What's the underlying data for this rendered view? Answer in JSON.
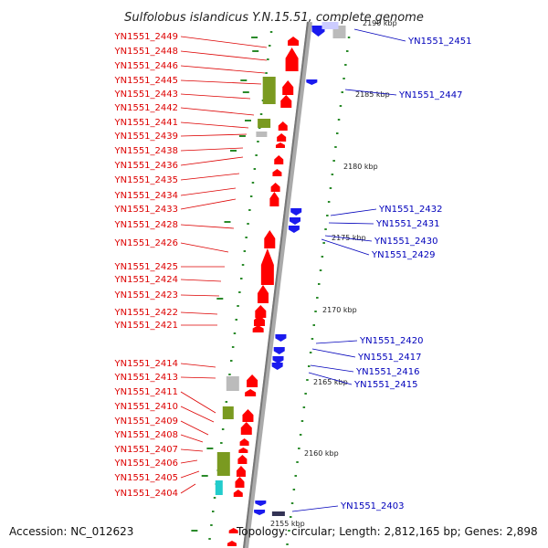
{
  "title": "Sulfolobus islandicus Y.N.15.51, complete genome",
  "accession_text": "Accession: NC_012623",
  "topology_text": "Topology: circular; Length: 2,812,165 bp; Genes: 2,898",
  "colors": {
    "forward_gene": "#ff0000",
    "reverse_gene": "#1a1aee",
    "left_label": "#dd0000",
    "right_label": "#0000bb",
    "backbone": "#999999",
    "gc_tick": "#2a8a2a",
    "cds_cog": "#7a9a20",
    "other_feature": "#bbbbbb",
    "cyan_feature": "#22cccc"
  },
  "scale_labels": [
    "2190 kbp",
    "2185 kbp",
    "2180 kbp",
    "2175 kbp",
    "2170 kbp",
    "2165 kbp",
    "2160 kbp",
    "2155 kbp"
  ],
  "left_genes": [
    "YN1551_2449",
    "YN1551_2448",
    "YN1551_2446",
    "YN1551_2445",
    "YN1551_2443",
    "YN1551_2442",
    "YN1551_2441",
    "YN1551_2439",
    "YN1551_2438",
    "YN1551_2436",
    "YN1551_2435",
    "YN1551_2434",
    "YN1551_2433",
    "YN1551_2428",
    "YN1551_2426",
    "YN1551_2425",
    "YN1551_2424",
    "YN1551_2423",
    "YN1551_2422",
    "YN1551_2421",
    "YN1551_2414",
    "YN1551_2413",
    "YN1551_2411",
    "YN1551_2410",
    "YN1551_2409",
    "YN1551_2408",
    "YN1551_2407",
    "YN1551_2406",
    "YN1551_2405",
    "YN1551_2404"
  ],
  "right_genes": [
    "YN1551_2451",
    "YN1551_2447",
    "YN1551_2432",
    "YN1551_2431",
    "YN1551_2430",
    "YN1551_2429",
    "YN1551_2420",
    "YN1551_2417",
    "YN1551_2416",
    "YN1551_2415",
    "YN1551_2403"
  ]
}
